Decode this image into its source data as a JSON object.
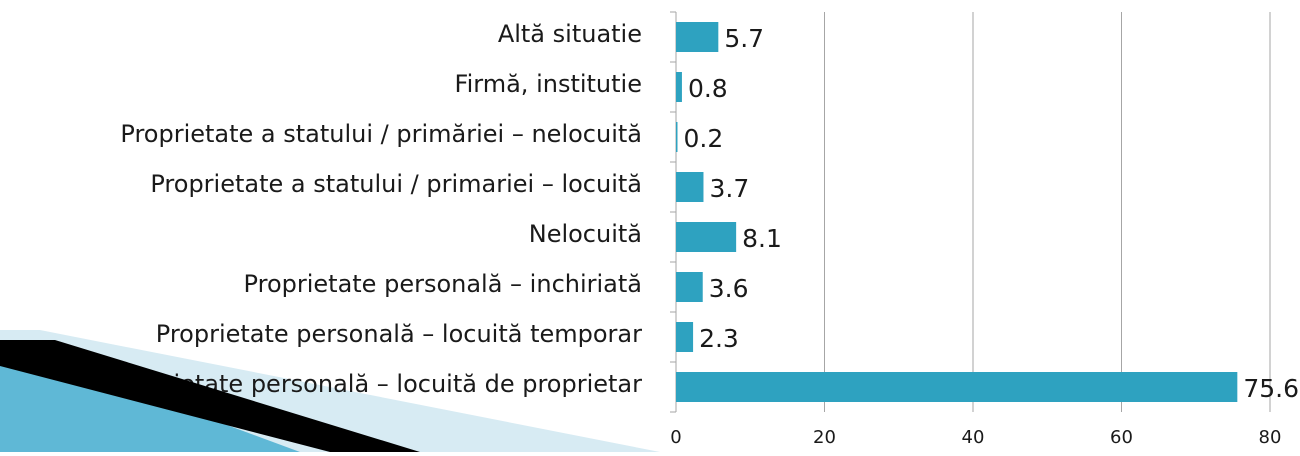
{
  "chart_data": {
    "type": "barh",
    "categories": [
      "Altă situatie",
      "Firmă, institutie",
      "Proprietate a statului / primăriei – nelocuită",
      "Proprietate a statului / primariei – locuită",
      "Nelocuită",
      "Proprietate personală – inchiriată",
      "Proprietate personală – locuită temporar",
      "Proprietate personală – locuită de proprietar"
    ],
    "values": [
      5.7,
      0.8,
      0.2,
      3.7,
      8.1,
      3.6,
      2.3,
      75.6
    ],
    "color": "#2ea2c0",
    "xlim": [
      0,
      80
    ],
    "xticks": [
      0,
      20,
      40,
      60,
      80
    ],
    "grid": true
  }
}
